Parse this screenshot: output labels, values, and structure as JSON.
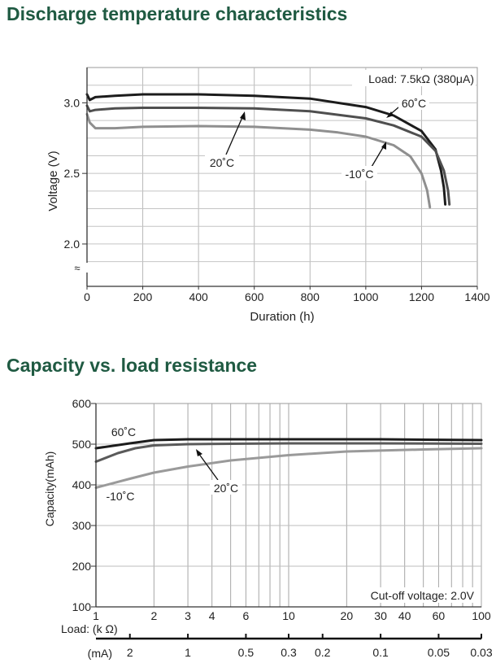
{
  "sections": {
    "discharge_title": "Discharge temperature characteristics",
    "capacity_title": "Capacity vs. load resistance"
  },
  "chart_data": [
    {
      "type": "line",
      "title": "Discharge temperature characteristics",
      "xlabel": "Duration (h)",
      "ylabel": "Voltage (V)",
      "xlim": [
        0,
        1400
      ],
      "ylim": [
        1.7,
        3.25
      ],
      "x_ticks": [
        0,
        200,
        400,
        600,
        800,
        1000,
        1200,
        1400
      ],
      "x_tick_labels": [
        "0",
        "200",
        "400",
        "600",
        "800",
        "1000",
        "1200",
        "1400"
      ],
      "y_ticks": [
        2.0,
        2.5,
        3.0
      ],
      "y_tick_labels": [
        "2.0",
        "2.5",
        "3.0"
      ],
      "axis_break_symbol": "≈",
      "grid": true,
      "annotation": "Load: 7.5kΩ (380μA)",
      "series": [
        {
          "name": "60˚C",
          "color": "#1c1c1c",
          "points": [
            [
              0,
              3.06
            ],
            [
              10,
              3.02
            ],
            [
              30,
              3.04
            ],
            [
              100,
              3.05
            ],
            [
              200,
              3.06
            ],
            [
              400,
              3.06
            ],
            [
              600,
              3.05
            ],
            [
              800,
              3.03
            ],
            [
              1000,
              2.97
            ],
            [
              1100,
              2.91
            ],
            [
              1200,
              2.8
            ],
            [
              1250,
              2.67
            ],
            [
              1270,
              2.52
            ],
            [
              1280,
              2.4
            ],
            [
              1285,
              2.28
            ]
          ]
        },
        {
          "name": "20˚C",
          "color": "#4f4f4f",
          "points": [
            [
              0,
              2.98
            ],
            [
              10,
              2.94
            ],
            [
              30,
              2.95
            ],
            [
              100,
              2.96
            ],
            [
              200,
              2.965
            ],
            [
              400,
              2.965
            ],
            [
              600,
              2.96
            ],
            [
              800,
              2.94
            ],
            [
              1000,
              2.89
            ],
            [
              1100,
              2.84
            ],
            [
              1200,
              2.76
            ],
            [
              1250,
              2.66
            ],
            [
              1280,
              2.52
            ],
            [
              1295,
              2.38
            ],
            [
              1300,
              2.28
            ]
          ]
        },
        {
          "name": "-10˚C",
          "color": "#8f8f8f",
          "points": [
            [
              0,
              2.92
            ],
            [
              10,
              2.86
            ],
            [
              30,
              2.82
            ],
            [
              100,
              2.82
            ],
            [
              200,
              2.83
            ],
            [
              400,
              2.835
            ],
            [
              600,
              2.83
            ],
            [
              800,
              2.81
            ],
            [
              900,
              2.79
            ],
            [
              1000,
              2.76
            ],
            [
              1100,
              2.7
            ],
            [
              1160,
              2.62
            ],
            [
              1200,
              2.5
            ],
            [
              1220,
              2.38
            ],
            [
              1230,
              2.26
            ]
          ]
        }
      ],
      "labels": {
        "s60": "60˚C",
        "s20": "20˚C",
        "s10": "-10˚C"
      }
    },
    {
      "type": "line",
      "title": "Capacity vs. load resistance",
      "xlabel": "Load: (k Ω)",
      "xlabel2": "(mA)",
      "ylabel": "Capacity(mAh)",
      "x_scale": "log",
      "xlim": [
        1,
        100
      ],
      "ylim": [
        100,
        600
      ],
      "x_ticks": [
        1,
        2,
        3,
        4,
        6,
        10,
        20,
        30,
        40,
        60,
        100
      ],
      "x_tick_labels": [
        "1",
        "2",
        "3",
        "4",
        "6",
        "10",
        "20",
        "30",
        "40",
        "60",
        "100"
      ],
      "x_grid": [
        1,
        2,
        3,
        4,
        5,
        6,
        7,
        8,
        9,
        10,
        20,
        30,
        40,
        50,
        60,
        70,
        80,
        90,
        100
      ],
      "ma_ticks": [
        {
          "load": 1.5,
          "label": "2"
        },
        {
          "load": 3,
          "label": "1"
        },
        {
          "load": 6,
          "label": "0.5"
        },
        {
          "load": 10,
          "label": "0.3"
        },
        {
          "load": 15,
          "label": "0.2"
        },
        {
          "load": 30,
          "label": "0.1"
        },
        {
          "load": 60,
          "label": "0.05"
        },
        {
          "load": 100,
          "label": "0.03"
        }
      ],
      "y_ticks": [
        100,
        200,
        300,
        400,
        500,
        600
      ],
      "y_tick_labels": [
        "100",
        "200",
        "300",
        "400",
        "500",
        "600"
      ],
      "annotation": "Cut-off voltage: 2.0V",
      "series": [
        {
          "name": "60˚C",
          "color": "#1c1c1c",
          "points": [
            [
              1,
              490
            ],
            [
              1.5,
              502
            ],
            [
              2,
              510
            ],
            [
              3,
              512
            ],
            [
              5,
              512
            ],
            [
              10,
              512
            ],
            [
              30,
              512
            ],
            [
              100,
              510
            ]
          ]
        },
        {
          "name": "20˚C",
          "color": "#5a5a5a",
          "points": [
            [
              1,
              457
            ],
            [
              1.3,
              478
            ],
            [
              1.6,
              490
            ],
            [
              2,
              497
            ],
            [
              3,
              500
            ],
            [
              5,
              501
            ],
            [
              10,
              502
            ],
            [
              30,
              502
            ],
            [
              100,
              501
            ]
          ]
        },
        {
          "name": "-10˚C",
          "color": "#9a9a9a",
          "points": [
            [
              1,
              393
            ],
            [
              1.5,
              415
            ],
            [
              2,
              430
            ],
            [
              3,
              445
            ],
            [
              5,
              460
            ],
            [
              10,
              473
            ],
            [
              20,
              482
            ],
            [
              50,
              487
            ],
            [
              100,
              490
            ]
          ]
        }
      ],
      "labels": {
        "s60": "60˚C",
        "s20": "20˚C",
        "s10": "-10˚C"
      }
    }
  ]
}
